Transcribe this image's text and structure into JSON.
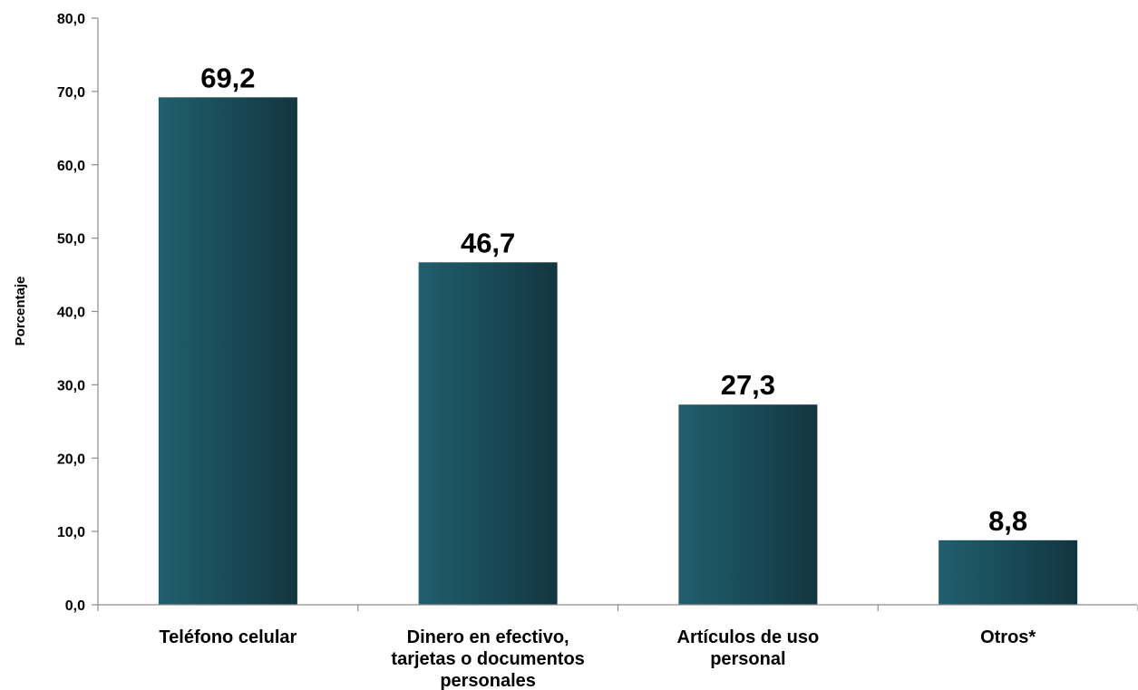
{
  "chart_data": {
    "type": "bar",
    "categories": [
      [
        "Teléfono celular"
      ],
      [
        "Dinero en efectivo,",
        "tarjetas o documentos",
        "personales"
      ],
      [
        "Artículos de uso",
        "personal"
      ],
      [
        "Otros*"
      ]
    ],
    "values": [
      69.2,
      46.7,
      27.3,
      8.8
    ],
    "value_labels": [
      "69,2",
      "46,7",
      "27,3",
      "8,8"
    ],
    "ylabel": "Porcentaje",
    "ylim": [
      0,
      80
    ],
    "yticks": [
      0,
      10,
      20,
      30,
      40,
      50,
      60,
      70,
      80
    ],
    "ytick_labels": [
      "0,0",
      "10,0",
      "20,0",
      "30,0",
      "40,0",
      "50,0",
      "60,0",
      "70,0",
      "80,0"
    ],
    "grid": false,
    "legend": "none",
    "colors": {
      "bar_light": "#215f6e",
      "bar_dark": "#123640",
      "axis": "#8c8c8c"
    }
  }
}
